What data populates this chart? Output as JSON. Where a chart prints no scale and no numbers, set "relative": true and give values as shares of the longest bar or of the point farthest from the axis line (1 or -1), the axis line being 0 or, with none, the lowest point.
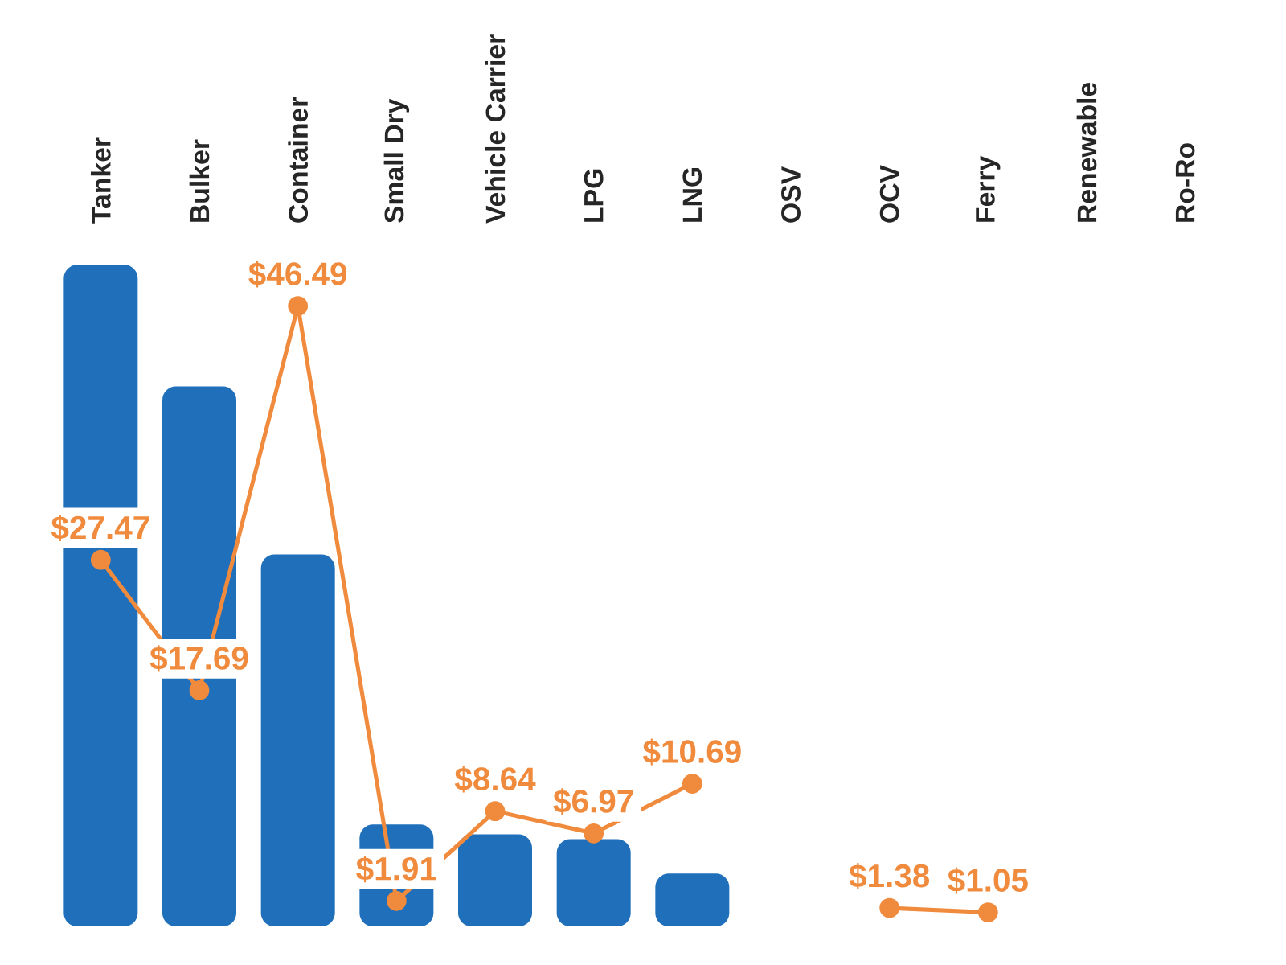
{
  "chart_data": [
    {
      "type": "bar",
      "relative": true,
      "color": "#1f6fba",
      "categories": [
        "Tanker",
        "Bulker",
        "Container",
        "Small Dry",
        "Vehicle Carrier",
        "LPG",
        "LNG",
        "OSV",
        "OCV",
        "Ferry",
        "Renewable",
        "Ro-Ro"
      ],
      "values": [
        1,
        0.816,
        0.562,
        0.154,
        0.139,
        0.132,
        0.08,
        null,
        null,
        null,
        null,
        null
      ]
    },
    {
      "type": "line",
      "tick_labels": false,
      "marker": "circle",
      "color": "#f08a3c",
      "categories": [
        null,
        null,
        null,
        null,
        null,
        null,
        null,
        null,
        null,
        null,
        null,
        null
      ],
      "values": [
        27.47,
        17.69,
        46.49,
        1.91,
        8.64,
        6.97,
        10.69,
        null,
        1.38,
        1.05,
        null,
        null
      ],
      "value_labels": [
        "$27.47",
        "$17.69",
        "$46.49",
        "$1.91",
        "$8.64",
        "$6.97",
        "$10.69",
        null,
        "$1.38",
        "$1.05",
        null,
        null
      ]
    }
  ]
}
